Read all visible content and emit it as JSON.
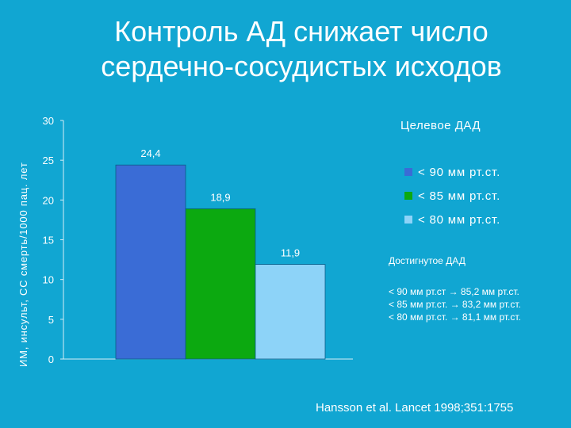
{
  "title_lines": [
    "Контроль АД снижает число",
    "сердечно-сосудистых исходов"
  ],
  "chart_data": {
    "type": "bar",
    "title": "",
    "xlabel": "",
    "ylabel": "ИМ, инсульт, СС смерть/1000 пац. лет",
    "ylim": [
      0,
      30
    ],
    "yticks": [
      "0",
      "5",
      "10",
      "15",
      "20",
      "25",
      "30"
    ],
    "categories": [
      "< 90 мм рт.ст.",
      "< 85 мм рт.ст.",
      "< 80 мм рт.ст."
    ],
    "values": [
      24.4,
      18.9,
      11.9
    ],
    "value_labels": [
      "24,4",
      "18,9",
      "11,9"
    ],
    "colors": [
      "#3a6cd6",
      "#0ca910",
      "#8dd3f8"
    ],
    "grid": false,
    "legend": {
      "title": "Целевое ДАД",
      "position": "right",
      "items": [
        "< 90 мм рт.ст.",
        "< 85 мм рт.ст.",
        "< 80 мм рт.ст."
      ]
    }
  },
  "achieved": {
    "title": "Достигнутое ДАД",
    "items": [
      "< 90 мм рт.ст → 85,2 мм рт.ст.",
      "< 85 мм рт.ст. → 83,2 мм рт.ст.",
      "< 80 мм рт.ст. → 81,1 мм рт.ст."
    ]
  },
  "citation": "Hansson et al. Lancet 1998;351:1755"
}
